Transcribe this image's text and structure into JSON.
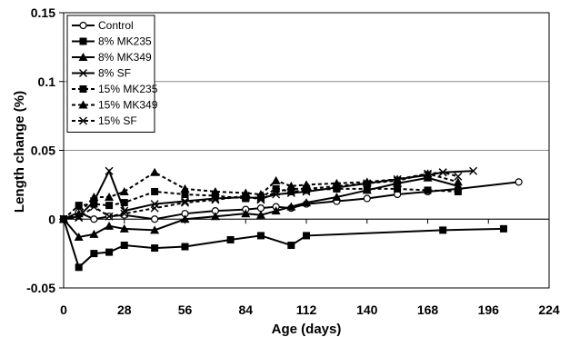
{
  "chart_data": {
    "type": "line",
    "title": "",
    "xlabel": "Age (days)",
    "ylabel": "Length change (%)",
    "xlim": [
      0,
      224
    ],
    "ylim": [
      -0.05,
      0.15
    ],
    "xticks": [
      0,
      28,
      56,
      84,
      112,
      140,
      168,
      196,
      224
    ],
    "yticks": [
      -0.05,
      0,
      0.05,
      0.1,
      0.15
    ],
    "ytick_labels": [
      "-0.05",
      "0",
      "0.05",
      "0.1",
      "0.15"
    ],
    "grid": "horizontal major gridlines",
    "legend_position": "top-left",
    "series": [
      {
        "name": "Control",
        "marker": "open-circle",
        "dash": "solid",
        "x": [
          0,
          7,
          14,
          21,
          28,
          42,
          56,
          70,
          84,
          91,
          98,
          105,
          112,
          126,
          140,
          154,
          168,
          182,
          210
        ],
        "y": [
          0,
          0.005,
          0,
          0.002,
          0.003,
          0,
          0.004,
          0.006,
          0.007,
          0.008,
          0.009,
          0.008,
          0.011,
          0.013,
          0.015,
          0.018,
          0.02,
          0.022,
          0.027
        ]
      },
      {
        "name": "8% MK235",
        "marker": "filled-square",
        "dash": "solid",
        "x": [
          0,
          7,
          14,
          21,
          28,
          42,
          56,
          77,
          91,
          105,
          112,
          175,
          203
        ],
        "y": [
          0,
          -0.035,
          -0.025,
          -0.024,
          -0.019,
          -0.021,
          -0.02,
          -0.015,
          -0.012,
          -0.019,
          -0.012,
          -0.008,
          -0.007
        ]
      },
      {
        "name": "8% MK349",
        "marker": "filled-triangle",
        "dash": "solid",
        "x": [
          0,
          7,
          14,
          21,
          28,
          42,
          56,
          70,
          84,
          91,
          98,
          105,
          112,
          126,
          140,
          154,
          168,
          182
        ],
        "y": [
          0,
          -0.013,
          -0.011,
          -0.005,
          -0.007,
          -0.008,
          0,
          0.002,
          0.004,
          0.003,
          0.006,
          0.009,
          0.012,
          0.016,
          0.021,
          0.026,
          0.03,
          0.024
        ]
      },
      {
        "name": "8% SF",
        "marker": "x",
        "dash": "solid",
        "x": [
          0,
          7,
          14,
          21,
          28,
          42,
          56,
          70,
          84,
          91,
          98,
          105,
          112,
          126,
          140,
          154,
          168,
          175,
          189
        ],
        "y": [
          0,
          0.002,
          0.013,
          0.035,
          0.006,
          0.011,
          0.013,
          0.015,
          0.016,
          0.015,
          0.018,
          0.019,
          0.02,
          0.023,
          0.026,
          0.029,
          0.032,
          0.034,
          0.035
        ]
      },
      {
        "name": "15% MK235",
        "marker": "filled-square",
        "dash": "dashed",
        "x": [
          0,
          7,
          14,
          21,
          28,
          42,
          56,
          70,
          84,
          91,
          98,
          105,
          112,
          126,
          140,
          154,
          168,
          182
        ],
        "y": [
          0,
          0.01,
          0.011,
          0.01,
          0.012,
          0.02,
          0.018,
          0.017,
          0.015,
          0.016,
          0.022,
          0.02,
          0.021,
          0.022,
          0.022,
          0.022,
          0.021,
          0.02
        ]
      },
      {
        "name": "15% MK349",
        "marker": "filled-triangle",
        "dash": "dashed",
        "x": [
          0,
          7,
          14,
          21,
          28,
          42,
          56,
          70,
          84,
          91,
          98,
          105,
          112,
          126,
          140,
          154,
          168,
          182
        ],
        "y": [
          0,
          0.004,
          0.016,
          0.016,
          0.02,
          0.034,
          0.022,
          0.02,
          0.019,
          0.018,
          0.028,
          0.024,
          0.025,
          0.026,
          0.027,
          0.029,
          0.033,
          0.027
        ]
      },
      {
        "name": "15% SF",
        "marker": "x",
        "dash": "dashed",
        "x": [
          0,
          7,
          14,
          21,
          28,
          42,
          56,
          70,
          84,
          91,
          98,
          105,
          112,
          126,
          140,
          154,
          168,
          175,
          182
        ],
        "y": [
          0,
          0.001,
          0.009,
          0.002,
          0.004,
          0.008,
          0.012,
          0.014,
          0.017,
          0.014,
          0.02,
          0.022,
          0.022,
          0.024,
          0.026,
          0.028,
          0.033,
          0.034,
          0.031
        ]
      }
    ]
  }
}
